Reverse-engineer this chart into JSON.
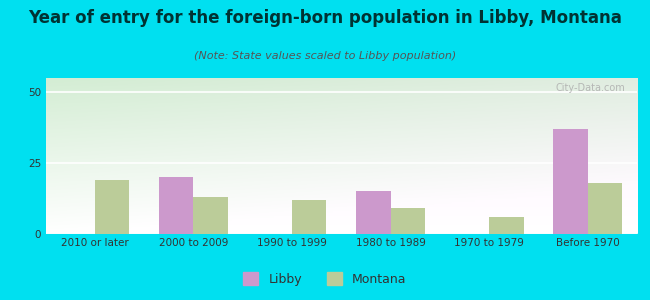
{
  "title": "Year of entry for the foreign-born population in Libby, Montana",
  "subtitle": "(Note: State values scaled to Libby population)",
  "categories": [
    "2010 or later",
    "2000 to 2009",
    "1990 to 1999",
    "1980 to 1989",
    "1970 to 1979",
    "Before 1970"
  ],
  "libby_values": [
    0,
    20,
    0,
    15,
    0,
    37
  ],
  "montana_values": [
    19,
    13,
    12,
    9,
    6,
    18
  ],
  "libby_color": "#cc99cc",
  "montana_color": "#bbcc99",
  "background_outer": "#00e0f0",
  "ylim": [
    0,
    55
  ],
  "yticks": [
    0,
    25,
    50
  ],
  "bar_width": 0.35,
  "title_fontsize": 12,
  "subtitle_fontsize": 8,
  "tick_fontsize": 7.5,
  "legend_fontsize": 9,
  "title_color": "#003333",
  "subtitle_color": "#555555",
  "tick_color": "#333333"
}
